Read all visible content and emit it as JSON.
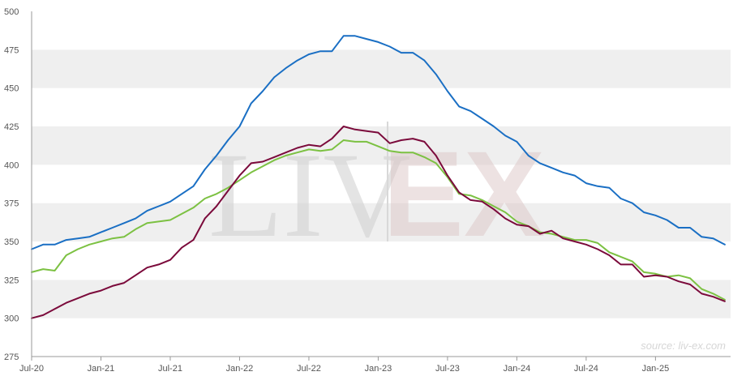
{
  "chart_data": {
    "type": "line",
    "source": "source: liv-ex.com",
    "watermark": {
      "left": "LIV",
      "right": "EX"
    },
    "ylim": [
      275,
      500
    ],
    "y_ticks": [
      275,
      300,
      325,
      350,
      375,
      400,
      425,
      450,
      475,
      500
    ],
    "x_ticks": [
      {
        "label": "Jul-20",
        "x": 0
      },
      {
        "label": "Jan-21",
        "x": 6
      },
      {
        "label": "Jul-21",
        "x": 12
      },
      {
        "label": "Jan-22",
        "x": 18
      },
      {
        "label": "Jul-22",
        "x": 24
      },
      {
        "label": "Jan-23",
        "x": 30
      },
      {
        "label": "Jul-23",
        "x": 36
      },
      {
        "label": "Jan-24",
        "x": 42
      },
      {
        "label": "Jul-24",
        "x": 48
      },
      {
        "label": "Jan-25",
        "x": 54
      }
    ],
    "xlim": [
      0,
      60.5
    ],
    "grid": "horizontal bands",
    "series": [
      {
        "color": "#1a6fc4",
        "values": [
          [
            0,
            345
          ],
          [
            1,
            348
          ],
          [
            2,
            348
          ],
          [
            3,
            351
          ],
          [
            4,
            352
          ],
          [
            5,
            353
          ],
          [
            6,
            356
          ],
          [
            7,
            359
          ],
          [
            8,
            362
          ],
          [
            9,
            365
          ],
          [
            10,
            370
          ],
          [
            11,
            373
          ],
          [
            12,
            376
          ],
          [
            13,
            381
          ],
          [
            14,
            386
          ],
          [
            15,
            397
          ],
          [
            16,
            406
          ],
          [
            17,
            416
          ],
          [
            18,
            425
          ],
          [
            19,
            440
          ],
          [
            20,
            448
          ],
          [
            21,
            457
          ],
          [
            22,
            463
          ],
          [
            23,
            468
          ],
          [
            24,
            472
          ],
          [
            25,
            474
          ],
          [
            26,
            474
          ],
          [
            27,
            484
          ],
          [
            28,
            484
          ],
          [
            29,
            482
          ],
          [
            30,
            480
          ],
          [
            31,
            477
          ],
          [
            32,
            473
          ],
          [
            33,
            473
          ],
          [
            34,
            468
          ],
          [
            35,
            459
          ],
          [
            36,
            448
          ],
          [
            37,
            438
          ],
          [
            38,
            435
          ],
          [
            39,
            430
          ],
          [
            40,
            425
          ],
          [
            41,
            419
          ],
          [
            42,
            415
          ],
          [
            43,
            406
          ],
          [
            44,
            401
          ],
          [
            45,
            398
          ],
          [
            46,
            395
          ],
          [
            47,
            393
          ],
          [
            48,
            388
          ],
          [
            49,
            386
          ],
          [
            50,
            385
          ],
          [
            51,
            378
          ],
          [
            52,
            375
          ],
          [
            53,
            369
          ],
          [
            54,
            367
          ],
          [
            55,
            364
          ],
          [
            56,
            359
          ],
          [
            57,
            359
          ],
          [
            58,
            353
          ],
          [
            59,
            352
          ],
          [
            60,
            348
          ]
        ]
      },
      {
        "color": "#7cc142",
        "values": [
          [
            0,
            330
          ],
          [
            1,
            332
          ],
          [
            2,
            331
          ],
          [
            3,
            341
          ],
          [
            4,
            345
          ],
          [
            5,
            348
          ],
          [
            6,
            350
          ],
          [
            7,
            352
          ],
          [
            8,
            353
          ],
          [
            9,
            358
          ],
          [
            10,
            362
          ],
          [
            11,
            363
          ],
          [
            12,
            364
          ],
          [
            13,
            368
          ],
          [
            14,
            372
          ],
          [
            15,
            378
          ],
          [
            16,
            381
          ],
          [
            17,
            385
          ],
          [
            18,
            390
          ],
          [
            19,
            395
          ],
          [
            20,
            399
          ],
          [
            21,
            403
          ],
          [
            22,
            406
          ],
          [
            23,
            408
          ],
          [
            24,
            410
          ],
          [
            25,
            409
          ],
          [
            26,
            410
          ],
          [
            27,
            416
          ],
          [
            28,
            415
          ],
          [
            29,
            415
          ],
          [
            30,
            412
          ],
          [
            31,
            409
          ],
          [
            32,
            408
          ],
          [
            33,
            408
          ],
          [
            34,
            405
          ],
          [
            35,
            401
          ],
          [
            36,
            392
          ],
          [
            37,
            381
          ],
          [
            38,
            380
          ],
          [
            39,
            377
          ],
          [
            40,
            373
          ],
          [
            41,
            369
          ],
          [
            42,
            363
          ],
          [
            43,
            360
          ],
          [
            44,
            356
          ],
          [
            45,
            355
          ],
          [
            46,
            353
          ],
          [
            47,
            351
          ],
          [
            48,
            351
          ],
          [
            49,
            349
          ],
          [
            50,
            343
          ],
          [
            51,
            340
          ],
          [
            52,
            337
          ],
          [
            53,
            330
          ],
          [
            54,
            329
          ],
          [
            55,
            327
          ],
          [
            56,
            328
          ],
          [
            57,
            326
          ],
          [
            58,
            319
          ],
          [
            59,
            316
          ],
          [
            60,
            312
          ]
        ]
      },
      {
        "color": "#7b0a3b",
        "values": [
          [
            0,
            300
          ],
          [
            1,
            302
          ],
          [
            2,
            306
          ],
          [
            3,
            310
          ],
          [
            4,
            313
          ],
          [
            5,
            316
          ],
          [
            6,
            318
          ],
          [
            7,
            321
          ],
          [
            8,
            323
          ],
          [
            9,
            328
          ],
          [
            10,
            333
          ],
          [
            11,
            335
          ],
          [
            12,
            338
          ],
          [
            13,
            346
          ],
          [
            14,
            351
          ],
          [
            15,
            365
          ],
          [
            16,
            373
          ],
          [
            17,
            383
          ],
          [
            18,
            393
          ],
          [
            19,
            401
          ],
          [
            20,
            402
          ],
          [
            21,
            405
          ],
          [
            22,
            408
          ],
          [
            23,
            411
          ],
          [
            24,
            413
          ],
          [
            25,
            412
          ],
          [
            26,
            417
          ],
          [
            27,
            425
          ],
          [
            28,
            423
          ],
          [
            29,
            422
          ],
          [
            30,
            421
          ],
          [
            31,
            414
          ],
          [
            32,
            416
          ],
          [
            33,
            417
          ],
          [
            34,
            415
          ],
          [
            35,
            406
          ],
          [
            36,
            393
          ],
          [
            37,
            382
          ],
          [
            38,
            377
          ],
          [
            39,
            376
          ],
          [
            40,
            371
          ],
          [
            41,
            365
          ],
          [
            42,
            361
          ],
          [
            43,
            360
          ],
          [
            44,
            355
          ],
          [
            45,
            357
          ],
          [
            46,
            352
          ],
          [
            47,
            350
          ],
          [
            48,
            348
          ],
          [
            49,
            345
          ],
          [
            50,
            341
          ],
          [
            51,
            335
          ],
          [
            52,
            335
          ],
          [
            53,
            327
          ],
          [
            54,
            328
          ],
          [
            55,
            327
          ],
          [
            56,
            324
          ],
          [
            57,
            322
          ],
          [
            58,
            316
          ],
          [
            59,
            314
          ],
          [
            60,
            311
          ]
        ]
      }
    ]
  }
}
